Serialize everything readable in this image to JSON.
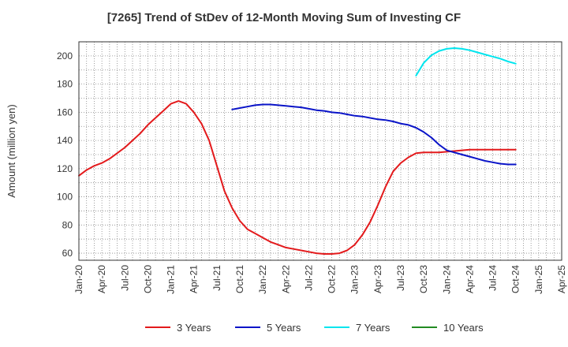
{
  "chart_data": {
    "type": "line",
    "title": "[7265]  Trend of StDev of 12-Month Moving Sum of Investing CF",
    "xlabel": "",
    "ylabel": "Amount (million yen)",
    "ylim": [
      55,
      210
    ],
    "yticks": [
      60,
      80,
      100,
      120,
      140,
      160,
      180,
      200
    ],
    "xlim": [
      "2020-01",
      "2025-04"
    ],
    "xticks": [
      "Jan-20",
      "Apr-20",
      "Jul-20",
      "Oct-20",
      "Jan-21",
      "Apr-21",
      "Jul-21",
      "Oct-21",
      "Jan-22",
      "Apr-22",
      "Jul-22",
      "Oct-22",
      "Jan-23",
      "Apr-23",
      "Jul-23",
      "Oct-23",
      "Jan-24",
      "Apr-24",
      "Jul-24",
      "Oct-24",
      "Jan-25",
      "Apr-25"
    ],
    "grid": true,
    "legend_position": "bottom",
    "series": [
      {
        "name": "3 Years",
        "color": "#e31a1c",
        "x": [
          "2020-01",
          "2020-02",
          "2020-03",
          "2020-04",
          "2020-05",
          "2020-06",
          "2020-07",
          "2020-08",
          "2020-09",
          "2020-10",
          "2020-11",
          "2020-12",
          "2021-01",
          "2021-02",
          "2021-03",
          "2021-04",
          "2021-05",
          "2021-06",
          "2021-07",
          "2021-08",
          "2021-09",
          "2021-10",
          "2021-11",
          "2021-12",
          "2022-01",
          "2022-02",
          "2022-03",
          "2022-04",
          "2022-05",
          "2022-06",
          "2022-07",
          "2022-08",
          "2022-09",
          "2022-10",
          "2022-11",
          "2022-12",
          "2023-01",
          "2023-02",
          "2023-03",
          "2023-04",
          "2023-05",
          "2023-06",
          "2023-07",
          "2023-08",
          "2023-09",
          "2023-10",
          "2023-11",
          "2023-12",
          "2024-01",
          "2024-02",
          "2024-03",
          "2024-04",
          "2024-05",
          "2024-06",
          "2024-07",
          "2024-08",
          "2024-09",
          "2024-10"
        ],
        "values": [
          115,
          119,
          122,
          124,
          127,
          131,
          135,
          140,
          145,
          151,
          156,
          161,
          166,
          168,
          166,
          160,
          152,
          140,
          122,
          104,
          92,
          83,
          77,
          74,
          71,
          68,
          66,
          64,
          63,
          62,
          61,
          60,
          59.5,
          59.5,
          60,
          62,
          66,
          73,
          82,
          94,
          107,
          118,
          124,
          128,
          131,
          131.5,
          131.5,
          131.5,
          132,
          132.5,
          133,
          133.5,
          133.5,
          133.5,
          133.5,
          133.5,
          133.5,
          133.5
        ]
      },
      {
        "name": "5 Years",
        "color": "#0a14c8",
        "x": [
          "2021-09",
          "2021-10",
          "2021-11",
          "2021-12",
          "2022-01",
          "2022-02",
          "2022-03",
          "2022-04",
          "2022-05",
          "2022-06",
          "2022-07",
          "2022-08",
          "2022-09",
          "2022-10",
          "2022-11",
          "2022-12",
          "2023-01",
          "2023-02",
          "2023-03",
          "2023-04",
          "2023-05",
          "2023-06",
          "2023-07",
          "2023-08",
          "2023-09",
          "2023-10",
          "2023-11",
          "2023-12",
          "2024-01",
          "2024-02",
          "2024-03",
          "2024-04",
          "2024-05",
          "2024-06",
          "2024-07",
          "2024-08",
          "2024-09",
          "2024-10"
        ],
        "values": [
          162,
          163,
          164,
          165,
          165.5,
          165.5,
          165,
          164.5,
          164,
          163.5,
          162.5,
          161.5,
          161,
          160,
          159.5,
          158.5,
          157.5,
          157,
          156,
          155,
          154.5,
          153.5,
          152,
          151,
          149,
          146,
          142,
          137,
          133,
          131.5,
          130,
          128.5,
          127,
          125.5,
          124.5,
          123.5,
          123,
          123
        ]
      },
      {
        "name": "7 Years",
        "color": "#00e5ee",
        "x": [
          "2023-09",
          "2023-10",
          "2023-11",
          "2023-12",
          "2024-01",
          "2024-02",
          "2024-03",
          "2024-04",
          "2024-05",
          "2024-06",
          "2024-07",
          "2024-08",
          "2024-09",
          "2024-10"
        ],
        "values": [
          186,
          195,
          200.5,
          203.5,
          205,
          205.5,
          205,
          204,
          202.5,
          201,
          199.5,
          198,
          196,
          194.5
        ]
      },
      {
        "name": "10 Years",
        "color": "#228b22",
        "x": [],
        "values": []
      }
    ]
  }
}
